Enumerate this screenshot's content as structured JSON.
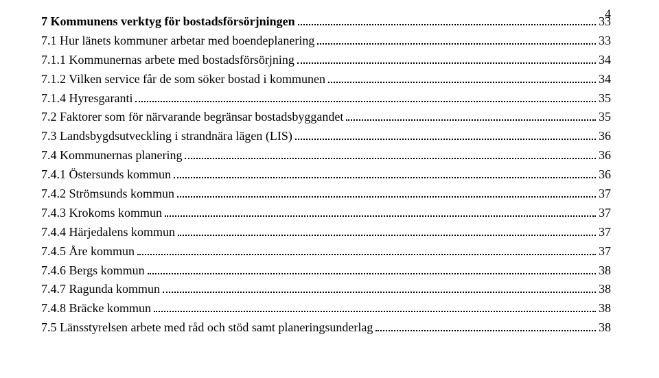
{
  "page_number": "4",
  "toc": [
    {
      "label": "7 Kommunens verktyg för bostadsförsörjningen",
      "page": "33",
      "bold": true,
      "indent": 0
    },
    {
      "label": "7.1 Hur länets kommuner arbetar med boendeplanering",
      "page": "33",
      "bold": false,
      "indent": 0
    },
    {
      "label": "7.1.1 Kommunernas arbete med bostadsförsörjning",
      "page": "34",
      "bold": false,
      "indent": 0
    },
    {
      "label": "7.1.2 Vilken service får de som söker bostad i kommunen",
      "page": "34",
      "bold": false,
      "indent": 0
    },
    {
      "label": "7.1.4 Hyresgaranti",
      "page": "35",
      "bold": false,
      "indent": 0
    },
    {
      "label": "7.2 Faktorer som för närvarande begränsar bostadsbyggandet",
      "page": "35",
      "bold": false,
      "indent": 0
    },
    {
      "label": "7.3 Landsbygdsutveckling i strandnära lägen (LIS)",
      "page": "36",
      "bold": false,
      "indent": 0
    },
    {
      "label": "7.4 Kommunernas planering",
      "page": "36",
      "bold": false,
      "indent": 0
    },
    {
      "label": "7.4.1 Östersunds kommun",
      "page": "36",
      "bold": false,
      "indent": 0
    },
    {
      "label": "7.4.2 Strömsunds kommun",
      "page": "37",
      "bold": false,
      "indent": 0
    },
    {
      "label": "7.4.3 Krokoms kommun",
      "page": "37",
      "bold": false,
      "indent": 0
    },
    {
      "label": "7.4.4 Härjedalens kommun",
      "page": "37",
      "bold": false,
      "indent": 0
    },
    {
      "label": "7.4.5 Åre kommun",
      "page": "37",
      "bold": false,
      "indent": 0
    },
    {
      "label": "7.4.6 Bergs kommun",
      "page": "38",
      "bold": false,
      "indent": 0
    },
    {
      "label": "7.4.7 Ragunda kommun",
      "page": "38",
      "bold": false,
      "indent": 0
    },
    {
      "label": "7.4.8 Bräcke kommun",
      "page": "38",
      "bold": false,
      "indent": 0
    },
    {
      "label": "7.5 Länsstyrelsen arbete med råd och stöd samt planeringsunderlag",
      "page": "38",
      "bold": false,
      "indent": 0
    }
  ]
}
